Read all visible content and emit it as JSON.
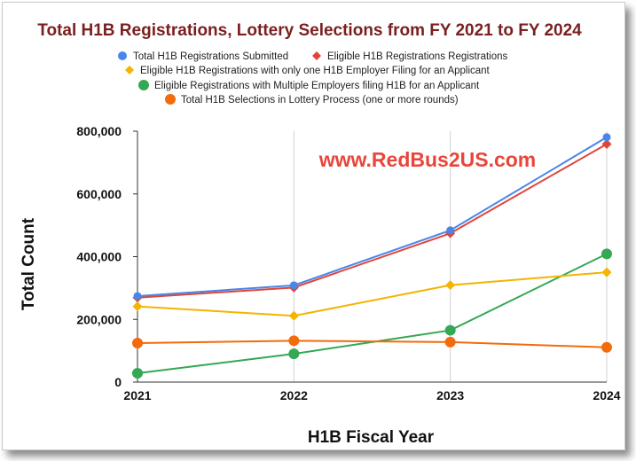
{
  "chart_data": {
    "type": "line",
    "title": "Total H1B Registrations, Lottery Selections from FY 2021 to FY 2024",
    "xlabel": "H1B Fiscal Year",
    "ylabel": "Total Count",
    "categories": [
      "2021",
      "2022",
      "2023",
      "2024"
    ],
    "ylim": [
      0,
      800000
    ],
    "yticks": [
      {
        "value": 0,
        "label": "0"
      },
      {
        "value": 200000,
        "label": "200,000"
      },
      {
        "value": 400000,
        "label": "400,000"
      },
      {
        "value": 600000,
        "label": "600,000"
      },
      {
        "value": 800000,
        "label": "800,000"
      }
    ],
    "grid": "vertical",
    "legend_position": "top",
    "watermark": "www.RedBus2US.com",
    "series": [
      {
        "name": "Total H1B Registrations Submitted",
        "marker": "circle",
        "color": "#4a86e8",
        "values": [
          274237,
          308613,
          483927,
          780884
        ]
      },
      {
        "name": "Eligible H1B Registrations Registrations",
        "marker": "diamond",
        "color": "#e0453a",
        "values": [
          269424,
          301447,
          474421,
          758994
        ]
      },
      {
        "name": "Eligible H1B Registrations with only one H1B Employer Filing for an Applicant",
        "marker": "diamond",
        "color": "#f4b400",
        "values": [
          241299,
          211304,
          309241,
          350103
        ]
      },
      {
        "name": "Eligible Registrations with Multiple Employers filing H1B for an Applicant",
        "marker": "circle",
        "color": "#34a853",
        "values": [
          28125,
          90143,
          165180,
          408891
        ]
      },
      {
        "name": "Total H1B Selections in Lottery Process (one or more rounds)",
        "marker": "circle",
        "color": "#f26b0c",
        "values": [
          124415,
          131970,
          127600,
          110791
        ]
      }
    ]
  }
}
